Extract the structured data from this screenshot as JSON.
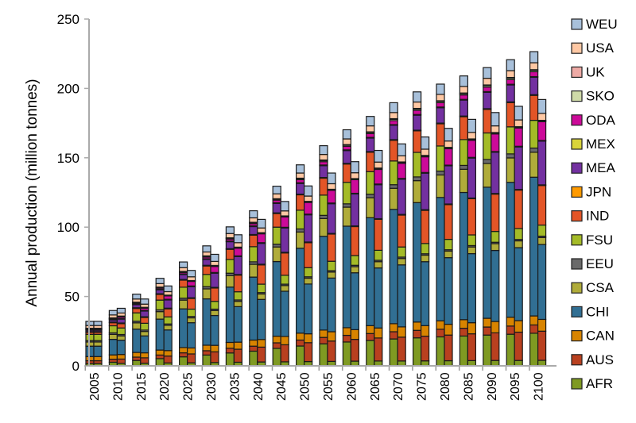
{
  "chart_data": {
    "type": "bar",
    "stacked": true,
    "bars_per_category": 2,
    "title": "",
    "xlabel": "",
    "ylabel": "Annual production (million tonnes)",
    "ylim": [
      0,
      250
    ],
    "yticks": [
      0,
      50,
      100,
      150,
      200,
      250
    ],
    "grid": false,
    "legend_position": "right",
    "categories": [
      "2005",
      "2010",
      "2015",
      "2020",
      "2025",
      "2030",
      "2035",
      "2040",
      "2045",
      "2050",
      "2055",
      "2060",
      "2065",
      "2070",
      "2075",
      "2080",
      "2085",
      "2090",
      "2095",
      "2100"
    ],
    "series": [
      {
        "name": "AFR",
        "color": "#7f9a22",
        "values_left": [
          1.7,
          2.6,
          3.9,
          5.2,
          6.5,
          7.8,
          9.3,
          10.6,
          12.6,
          14.3,
          15.9,
          17.2,
          18.3,
          19.4,
          20.2,
          20.9,
          21.5,
          22.2,
          22.8,
          23.5
        ],
        "values_right": [
          1.7,
          1.8,
          1.9,
          2.1,
          2.2,
          2.4,
          2.6,
          2.8,
          2.9,
          3.1,
          3.2,
          3.4,
          3.5,
          3.5,
          3.6,
          3.7,
          3.8,
          3.9,
          3.9,
          4
        ]
      },
      {
        "name": "AUS",
        "color": "#b9401f",
        "values_left": [
          2,
          2.2,
          2.4,
          2.6,
          2.9,
          3.1,
          3.4,
          3.6,
          4,
          4.3,
          4.6,
          4.8,
          5,
          5.2,
          5.4,
          5.5,
          5.6,
          5.8,
          5.9,
          6
        ],
        "values_right": [
          2,
          3.1,
          3.9,
          5,
          6.4,
          7.7,
          9.4,
          10.7,
          12.3,
          13.6,
          14.7,
          15.7,
          16.6,
          17.2,
          17.8,
          18.5,
          19.3,
          19.9,
          20.4,
          21
        ]
      },
      {
        "name": "CAN",
        "color": "#d88400",
        "values_left": [
          3,
          3.1,
          3.4,
          3.6,
          3.8,
          4,
          4.2,
          4.4,
          4.8,
          5,
          5.3,
          5.5,
          5.7,
          5.8,
          6,
          6.1,
          6.2,
          6.3,
          6.4,
          6.5
        ],
        "values_right": [
          3,
          3.3,
          3.6,
          3.9,
          4.3,
          4.7,
          5.1,
          5.5,
          6,
          6.4,
          6.7,
          7,
          7.2,
          7.4,
          7.6,
          7.8,
          8,
          8.2,
          8.3,
          8.5
        ]
      },
      {
        "name": "CHI",
        "color": "#316f93",
        "values_left": [
          7.5,
          11.2,
          16.8,
          22.3,
          27.9,
          33.4,
          39.9,
          45.4,
          53.8,
          61.2,
          67.6,
          73.2,
          77.8,
          82.4,
          86.1,
          88.9,
          91.7,
          94.5,
          97.2,
          100
        ],
        "values_right": [
          7.5,
          10.3,
          12.2,
          14.9,
          18.2,
          21.5,
          25.6,
          28.9,
          32.6,
          35.9,
          38.7,
          41,
          43.3,
          44.7,
          46.1,
          48,
          49.8,
          51.2,
          52.6,
          54
        ]
      },
      {
        "name": "CSA",
        "color": "#b0ac3a",
        "values_left": [
          3,
          3.6,
          4.5,
          5.4,
          6.3,
          7.2,
          8.3,
          9.2,
          10.5,
          11.7,
          12.8,
          13.7,
          14.4,
          15.2,
          15.8,
          16.2,
          16.7,
          17.1,
          17.6,
          18
        ],
        "values_right": [
          3,
          3.1,
          3.2,
          3.3,
          3.5,
          3.6,
          3.8,
          3.9,
          4.1,
          4.2,
          4.3,
          4.4,
          4.5,
          4.6,
          4.7,
          4.7,
          4.8,
          4.9,
          4.9,
          5
        ]
      },
      {
        "name": "EEU",
        "color": "#6a6a6a",
        "values_left": [
          1,
          1.1,
          1.2,
          1.3,
          1.4,
          1.6,
          1.7,
          1.8,
          2,
          2.2,
          2.3,
          2.4,
          2.5,
          2.6,
          2.7,
          2.8,
          2.8,
          2.9,
          2.9,
          3
        ],
        "values_right": [
          1,
          1,
          1,
          1,
          1,
          1,
          1,
          1,
          1,
          1,
          1,
          1,
          1,
          1,
          1,
          1,
          1,
          1,
          1,
          1
        ]
      },
      {
        "name": "FSU",
        "color": "#a4bb27",
        "values_left": [
          4.5,
          5.1,
          6,
          7,
          7.9,
          8.8,
          9.9,
          10.9,
          12.3,
          13.5,
          14.6,
          15.5,
          16.3,
          17.1,
          17.7,
          18.1,
          18.6,
          19.1,
          19.5,
          20
        ],
        "values_right": [
          4.5,
          4.7,
          4.9,
          5.1,
          5.3,
          5.6,
          5.9,
          6.1,
          6.4,
          6.6,
          6.8,
          7,
          7.2,
          7.3,
          7.4,
          7.5,
          7.7,
          7.8,
          7.9,
          8
        ]
      },
      {
        "name": "IND",
        "color": "#e35527",
        "values_left": [
          1.5,
          2.2,
          3.2,
          4.1,
          5.1,
          6.1,
          7.3,
          8.3,
          9.8,
          11.1,
          12.2,
          13.2,
          14,
          14.9,
          15.5,
          16,
          16.5,
          17,
          17.5,
          18
        ],
        "values_right": [
          1.5,
          3.1,
          4.2,
          5.8,
          7.7,
          9.6,
          12,
          13.9,
          16.1,
          18,
          19.6,
          20.9,
          22.3,
          23,
          23.9,
          25,
          26.1,
          26.9,
          27.7,
          28.5
        ]
      },
      {
        "name": "JPN",
        "color": "#ff9a00",
        "values_left": [
          0.5,
          0.5,
          0.5,
          0.5,
          0.5,
          0.5,
          0.5,
          0.5,
          0.5,
          0.5,
          0.5,
          0.5,
          0.5,
          0.5,
          0.5,
          0.5,
          0.5,
          0.5,
          0.5,
          0.5
        ],
        "values_right": [
          0.5,
          0.5,
          0.5,
          0.5,
          0.5,
          0.5,
          0.5,
          0.5,
          0.5,
          0.5,
          0.5,
          0.5,
          0.5,
          0.5,
          0.5,
          0.5,
          0.5,
          0.5,
          0.5,
          0.5
        ]
      },
      {
        "name": "MEA",
        "color": "#7330a0",
        "values_left": [
          1,
          1.5,
          2.2,
          2.8,
          3.5,
          4.2,
          5,
          5.7,
          6.8,
          7.7,
          8.5,
          9.2,
          9.7,
          10.3,
          10.8,
          11.1,
          11.5,
          11.8,
          12.2,
          12.5
        ],
        "values_right": [
          1,
          2.8,
          4.1,
          5.9,
          8,
          10.2,
          12.9,
          15,
          17.5,
          19.6,
          21.4,
          23,
          24.5,
          25.4,
          26.3,
          27.5,
          28.8,
          29.7,
          30.6,
          31.5
        ]
      },
      {
        "name": "MEX",
        "color": "#d9d43a",
        "values_left": [
          0.5,
          0.5,
          0.5,
          0.5,
          0.5,
          0.5,
          0.5,
          0.5,
          0.5,
          0.5,
          0.5,
          0.5,
          0.5,
          0.5,
          0.5,
          0.5,
          0.5,
          0.5,
          0.5,
          0.5
        ],
        "values_right": [
          0.5,
          0.5,
          0.5,
          0.5,
          0.5,
          0.5,
          0.5,
          0.5,
          0.5,
          0.5,
          0.5,
          0.5,
          0.5,
          0.5,
          0.5,
          0.5,
          0.5,
          0.5,
          0.5,
          0.5
        ]
      },
      {
        "name": "ODA",
        "color": "#cc0a99",
        "values_left": [
          0.3,
          0.4,
          0.6,
          0.8,
          1,
          1.2,
          1.4,
          1.6,
          1.9,
          2.2,
          2.4,
          2.6,
          2.7,
          2.9,
          3,
          3.1,
          3.2,
          3.3,
          3.4,
          3.5
        ],
        "values_right": [
          0.3,
          1.1,
          1.6,
          2.4,
          3.3,
          4.3,
          5.5,
          6.4,
          7.4,
          8.4,
          9.1,
          9.8,
          10.5,
          10.9,
          11.3,
          11.8,
          12.3,
          12.7,
          13.1,
          13.5
        ]
      },
      {
        "name": "SKO",
        "color": "#cfdaa8",
        "values_left": [
          0.3,
          0.3,
          0.4,
          0.4,
          0.5,
          0.5,
          0.5,
          0.6,
          0.6,
          0.7,
          0.8,
          0.8,
          0.8,
          0.9,
          0.9,
          0.9,
          0.9,
          1,
          1,
          1
        ],
        "values_right": [
          0.3,
          0.3,
          0.3,
          0.3,
          0.3,
          0.4,
          0.4,
          0.4,
          0.4,
          0.4,
          0.4,
          0.4,
          0.5,
          0.5,
          0.5,
          0.5,
          0.5,
          0.5,
          0.5,
          0.5
        ]
      },
      {
        "name": "UK",
        "color": "#eeaaa5",
        "values_left": [
          0.3,
          0.3,
          0.3,
          0.3,
          0.3,
          0.4,
          0.4,
          0.4,
          0.4,
          0.4,
          0.4,
          0.4,
          0.5,
          0.5,
          0.5,
          0.5,
          0.5,
          0.5,
          0.5,
          0.5
        ],
        "values_right": [
          0.3,
          0.3,
          0.3,
          0.3,
          0.3,
          0.4,
          0.4,
          0.4,
          0.4,
          0.4,
          0.4,
          0.4,
          0.5,
          0.5,
          0.5,
          0.5,
          0.5,
          0.5,
          0.5,
          0.5
        ]
      },
      {
        "name": "USA",
        "color": "#ffc8a4",
        "values_left": [
          2,
          2.1,
          2.3,
          2.5,
          2.7,
          2.8,
          3.1,
          3.2,
          3.5,
          3.7,
          4,
          4.1,
          4.3,
          4.4,
          4.6,
          4.6,
          4.7,
          4.8,
          4.9,
          5
        ],
        "values_right": [
          2,
          2.2,
          2.3,
          2.5,
          2.7,
          2.9,
          3.2,
          3.4,
          3.6,
          3.8,
          4,
          4.2,
          4.3,
          4.4,
          4.5,
          4.6,
          4.7,
          4.8,
          4.9,
          5
        ]
      },
      {
        "name": "WEU",
        "color": "#a8c0da",
        "values_left": [
          3,
          3.2,
          3.5,
          3.8,
          4.1,
          4.4,
          4.8,
          5.1,
          5.5,
          5.9,
          6.3,
          6.6,
          6.8,
          7.1,
          7.3,
          7.4,
          7.6,
          7.7,
          7.9,
          8
        ],
        "values_right": [
          3,
          3.4,
          3.7,
          4.1,
          4.6,
          5.1,
          5.7,
          6.2,
          6.8,
          7.3,
          7.7,
          8,
          8.4,
          8.6,
          8.8,
          9.1,
          9.4,
          9.6,
          9.8,
          10
        ]
      }
    ]
  }
}
